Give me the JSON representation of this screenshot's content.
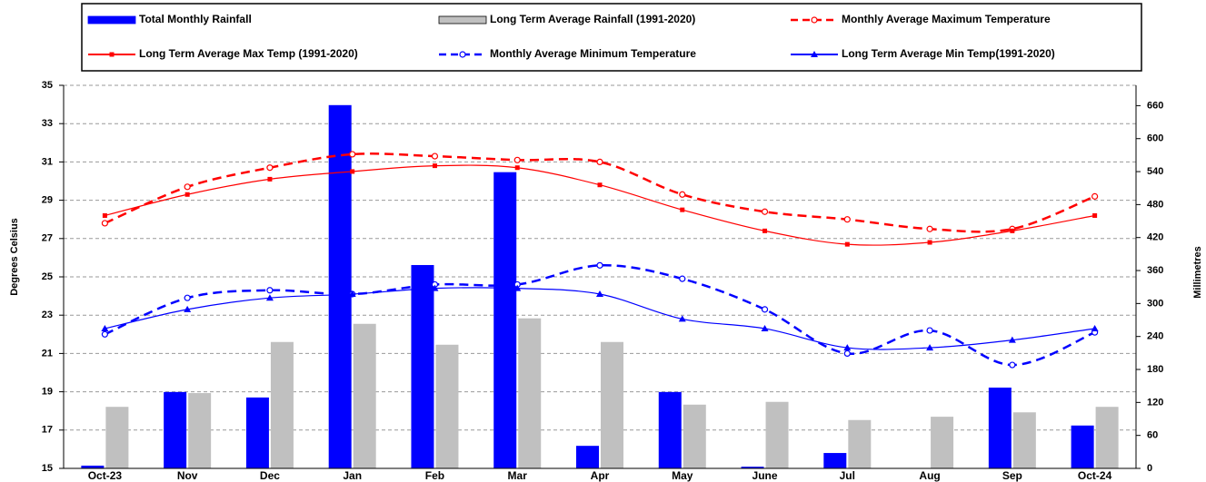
{
  "chart_data": {
    "type": "combo",
    "y_label": "Degrees Celsius",
    "y2_label": "Millimetres",
    "categories": [
      "Oct-23",
      "Nov",
      "Dec",
      "Jan",
      "Feb",
      "Mar",
      "Apr",
      "May",
      "June",
      "Jul",
      "Aug",
      "Sep",
      "Oct-24"
    ],
    "ylim": [
      15,
      35
    ],
    "yticks": [
      15,
      17,
      19,
      21,
      23,
      25,
      27,
      29,
      31,
      33,
      35
    ],
    "y2lim": [
      0,
      697
    ],
    "y2ticks": [
      0,
      60,
      120,
      180,
      240,
      300,
      360,
      420,
      480,
      540,
      600,
      660
    ],
    "grid": true,
    "series": [
      {
        "name": "Total Monthly Rainfall",
        "kind": "bar",
        "axis": "y2",
        "color": "#0000ff",
        "values": [
          5,
          139,
          129,
          661,
          370,
          539,
          41,
          139,
          3,
          28,
          0,
          147,
          78
        ]
      },
      {
        "name": "Long Term Average Rainfall (1991-2020)",
        "kind": "bar",
        "axis": "y2",
        "color": "#c0c0c0",
        "values": [
          112,
          137,
          230,
          263,
          225,
          273,
          230,
          116,
          121,
          88,
          94,
          102,
          112
        ]
      },
      {
        "name": "Monthly Average Maximum Temperature",
        "kind": "line",
        "axis": "y",
        "color": "#ff0000",
        "dash": true,
        "marker": "open-circle",
        "values": [
          27.8,
          29.7,
          30.7,
          31.4,
          31.3,
          31.1,
          31.0,
          29.3,
          28.4,
          28.0,
          27.5,
          27.5,
          29.2
        ]
      },
      {
        "name": "Long Term Average Max Temp (1991-2020)",
        "kind": "line",
        "axis": "y",
        "color": "#ff0000",
        "dash": false,
        "marker": "square",
        "values": [
          28.2,
          29.3,
          30.1,
          30.5,
          30.8,
          30.7,
          29.8,
          28.5,
          27.4,
          26.7,
          26.8,
          27.4,
          28.2
        ]
      },
      {
        "name": "Monthly Average Minimum Temperature",
        "kind": "line",
        "axis": "y",
        "color": "#0000ff",
        "dash": true,
        "marker": "open-circle",
        "values": [
          22.0,
          23.9,
          24.3,
          24.1,
          24.6,
          24.6,
          25.6,
          24.9,
          23.3,
          21.0,
          22.2,
          20.4,
          22.1
        ]
      },
      {
        "name": "Long Term Average Min Temp(1991-2020)",
        "kind": "line",
        "axis": "y",
        "color": "#0000ff",
        "dash": false,
        "marker": "triangle",
        "values": [
          22.3,
          23.3,
          23.9,
          24.1,
          24.4,
          24.4,
          24.1,
          22.8,
          22.3,
          21.3,
          21.3,
          21.7,
          22.3
        ]
      }
    ]
  }
}
